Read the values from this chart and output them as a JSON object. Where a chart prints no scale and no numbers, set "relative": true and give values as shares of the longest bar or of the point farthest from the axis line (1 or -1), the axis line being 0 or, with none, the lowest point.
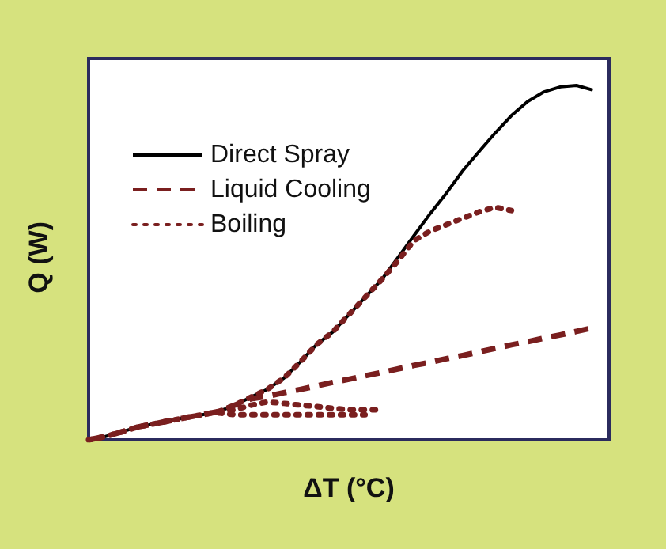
{
  "chart_data": {
    "type": "line",
    "relative": true,
    "xlabel": "ΔT (°C)",
    "ylabel": "Q (W)",
    "tick_labels": false,
    "grid": false,
    "legend": "top left",
    "marker": "none",
    "categories": [
      null,
      null,
      null,
      null,
      null,
      null,
      null,
      null,
      null,
      null,
      null,
      null,
      null,
      null,
      null,
      null,
      null,
      null,
      null,
      null,
      null,
      null,
      null,
      null,
      null,
      null,
      null,
      null,
      null,
      null,
      null,
      null,
      null
    ],
    "series": [
      {
        "name": "Direct Spray",
        "color": "#000000",
        "line_style": "solid",
        "values": [
          0,
          0.009,
          0.022,
          0.036,
          0.045,
          0.054,
          0.063,
          0.071,
          0.08,
          0.098,
          0.121,
          0.143,
          0.174,
          0.219,
          0.268,
          0.304,
          0.353,
          0.402,
          0.451,
          0.513,
          0.576,
          0.638,
          0.696,
          0.759,
          0.813,
          0.866,
          0.915,
          0.955,
          0.982,
          0.996,
          1,
          0.987,
          null
        ]
      },
      {
        "name": "Liquid Cooling",
        "color": "#7a1f1f",
        "line_style": "dashed",
        "values": [
          0,
          0.009,
          0.022,
          0.036,
          0.045,
          0.054,
          0.063,
          0.071,
          0.08,
          0.098,
          0.116,
          0.123,
          0.133,
          0.142,
          0.152,
          0.162,
          0.171,
          0.181,
          0.19,
          0.2,
          0.21,
          0.219,
          0.229,
          0.238,
          0.248,
          0.258,
          0.268,
          0.277,
          0.287,
          0.296,
          0.306,
          0.316,
          null
        ]
      },
      {
        "name": "Boiling",
        "color": "#7a1f1f",
        "line_style": "dotted",
        "values": [
          0,
          0.009,
          0.022,
          0.036,
          0.045,
          0.054,
          0.063,
          0.071,
          0.08,
          0.098,
          0.121,
          0.143,
          0.174,
          0.219,
          0.268,
          0.304,
          0.353,
          0.402,
          0.451,
          0.504,
          0.562,
          0.589,
          0.607,
          0.625,
          0.643,
          0.656,
          0.647,
          null,
          null,
          null,
          null,
          null,
          null
        ]
      },
      {
        "color": "#7a1f1f",
        "line_style": "dotted",
        "values": [
          null,
          null,
          null,
          null,
          null,
          null,
          null,
          null,
          0.08,
          0.085,
          0.098,
          0.107,
          0.103,
          0.098,
          0.094,
          0.089,
          0.085,
          0.085,
          0.085,
          null,
          null,
          null,
          null,
          null,
          null,
          null,
          null,
          null,
          null,
          null,
          null,
          null,
          null
        ]
      },
      {
        "color": "#7a1f1f",
        "line_style": "dotted",
        "values": [
          null,
          null,
          null,
          null,
          null,
          null,
          null,
          null,
          0.076,
          0.071,
          0.071,
          0.071,
          0.071,
          0.071,
          0.071,
          0.071,
          0.071,
          0.071,
          null,
          null,
          null,
          null,
          null,
          null,
          null,
          null,
          null,
          null,
          null,
          null,
          null,
          null,
          null
        ]
      }
    ]
  }
}
